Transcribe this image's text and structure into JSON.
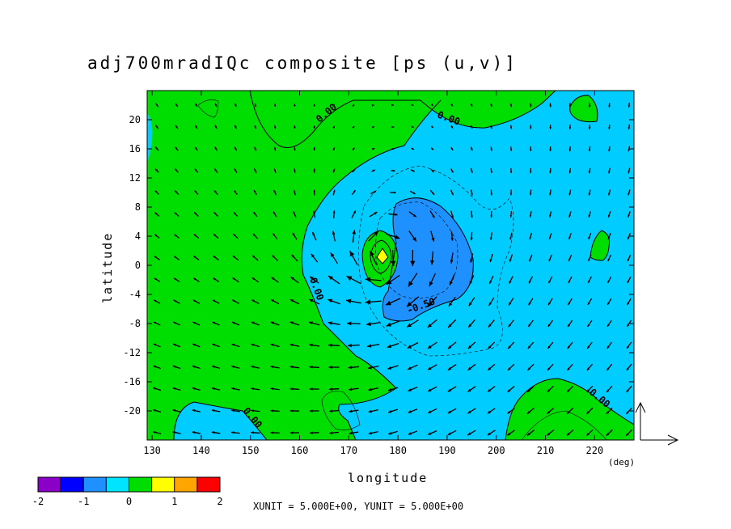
{
  "chart_data": {
    "type": "contour",
    "title": "adj700mradIQc composite [ps (u,v)]",
    "xlabel": "longitude",
    "ylabel": "latitude",
    "x_unit_label": "(deg)",
    "xlim": [
      129,
      228
    ],
    "ylim": [
      -24,
      24
    ],
    "x_ticks": [
      "130",
      "140",
      "150",
      "160",
      "170",
      "180",
      "190",
      "200",
      "210",
      "220"
    ],
    "y_ticks": [
      "20",
      "16",
      "12",
      "8",
      "4",
      "0",
      "-4",
      "-8",
      "-12",
      "-16",
      "-20"
    ],
    "contour_labels": [
      "0.00",
      "0.00",
      "0.00",
      "0.00",
      "0.00",
      "-0.50"
    ],
    "colorbar": {
      "ticks": [
        "-2",
        "-1",
        "0",
        "1",
        "2"
      ],
      "bounds": [
        -2,
        -1.5,
        -1,
        -0.5,
        0,
        0.5,
        1,
        1.5,
        2
      ],
      "colors": [
        "#8a00c8",
        "#0000ff",
        "#1e90ff",
        "#00e5ff",
        "#00dd00",
        "#ffff00",
        "#ffa500",
        "#ff0000"
      ]
    },
    "vector_scale_text": "XUNIT = 5.000E+00, YUNIT = 5.000E+00",
    "vortex_center": {
      "lon": 177,
      "lat": 1
    }
  }
}
